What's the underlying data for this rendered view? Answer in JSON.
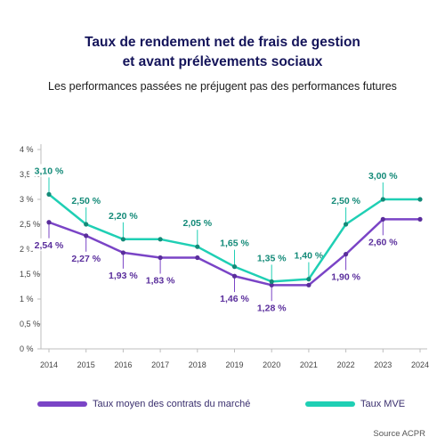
{
  "title_line1": "Taux de rendement net de frais de gestion",
  "title_line2": "et avant prélèvements sociaux",
  "subtitle": "Les performances passées ne préjugent pas des performances futures",
  "source": "Source ACPR",
  "colors": {
    "market": "#7a44c6",
    "mve": "#1fcfb4",
    "market_label": "#5a2e9c",
    "mve_label": "#138a78",
    "title": "#14145a"
  },
  "chart_data": {
    "type": "line",
    "categories": [
      "2014",
      "2015",
      "2016",
      "2017",
      "2018",
      "2019",
      "2020",
      "2021",
      "2022",
      "2023",
      "2024"
    ],
    "ylim": [
      0,
      4
    ],
    "yticks": [
      "0 %",
      "0,5 %",
      "1 %",
      "1,5 %",
      "2 %",
      "2,5 %",
      "3 %",
      "3,5 %",
      "4 %"
    ],
    "grid": false,
    "legend_position": "bottom",
    "series": [
      {
        "name": "Taux moyen des contrats du marché",
        "values": [
          2.54,
          2.27,
          1.93,
          1.83,
          1.83,
          1.46,
          1.28,
          1.28,
          1.9,
          2.6,
          2.6
        ],
        "labels": [
          "2,54 %",
          "2,27 %",
          "1,93 %",
          "1,83 %",
          "",
          "1,46 %",
          "1,28 %",
          "",
          "1,90 %",
          "2,60 %",
          ""
        ]
      },
      {
        "name": "Taux MVE",
        "values": [
          3.1,
          2.5,
          2.2,
          2.2,
          2.05,
          1.65,
          1.35,
          1.4,
          2.5,
          3.0,
          3.0
        ],
        "labels": [
          "3,10 %",
          "2,50 %",
          "2,20 %",
          "",
          "2,05 %",
          "1,65 %",
          "1,35 %",
          "1,40 %",
          "2,50 %",
          "3,00 %",
          ""
        ]
      }
    ]
  }
}
